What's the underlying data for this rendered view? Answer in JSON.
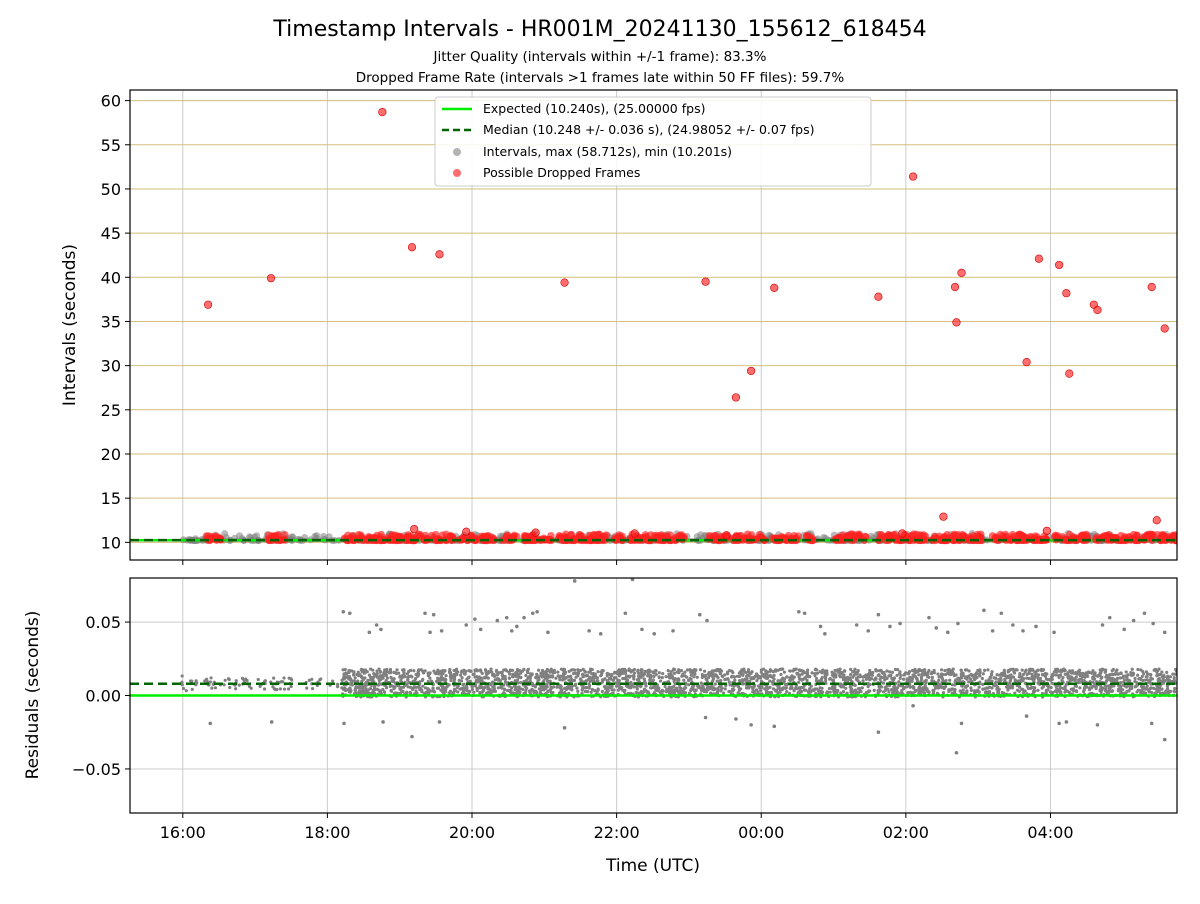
{
  "title": "Timestamp Intervals - HR001M_20241130_155612_618454",
  "subtitles": [
    "Jitter Quality (intervals within +/-1 frame): 83.3%",
    "Dropped Frame Rate (intervals >1 frames late within 50 FF files): 59.7%"
  ],
  "legend_entries": [
    "Expected (10.240s), (25.00000 fps)",
    "Median (10.248 +/- 0.036 s), (24.98052 +/- 0.07 fps)",
    "Intervals, max (58.712s), min (10.201s)",
    "Possible Dropped Frames"
  ],
  "colors": {
    "expected": "#00ee00",
    "median": "#006400",
    "intervals": "#808080",
    "dropped": "#ff2020",
    "hgrid_top": "#d4bf7a",
    "grid": "#cccccc"
  },
  "chart_data": [
    {
      "type": "scatter",
      "panel": "intervals",
      "ylabel": "Intervals (seconds)",
      "ylim": [
        8,
        61.2
      ],
      "yticks": [
        10,
        15,
        20,
        25,
        30,
        35,
        40,
        45,
        50,
        55,
        60
      ],
      "ytick_labels": [
        "10",
        "15",
        "20",
        "25",
        "30",
        "35",
        "40",
        "45",
        "50",
        "55",
        "60"
      ],
      "xlim": [
        15.27,
        29.75
      ],
      "x_unit": "hours (UTC), >24 wraps past midnight",
      "grid": "horizontal and vertical",
      "legend_position": "top-center",
      "expected_value": 10.24,
      "median_value": 10.248,
      "dropped_frames": [
        {
          "x": 16.35,
          "y": 36.9
        },
        {
          "x": 17.22,
          "y": 39.9
        },
        {
          "x": 18.76,
          "y": 58.7
        },
        {
          "x": 19.17,
          "y": 43.4
        },
        {
          "x": 19.55,
          "y": 42.6
        },
        {
          "x": 21.28,
          "y": 39.4
        },
        {
          "x": 23.23,
          "y": 39.5
        },
        {
          "x": 23.65,
          "y": 26.4
        },
        {
          "x": 23.86,
          "y": 29.4
        },
        {
          "x": 24.18,
          "y": 38.8
        },
        {
          "x": 25.62,
          "y": 37.8
        },
        {
          "x": 26.1,
          "y": 51.4
        },
        {
          "x": 26.52,
          "y": 12.9
        },
        {
          "x": 26.68,
          "y": 38.9
        },
        {
          "x": 26.7,
          "y": 34.9
        },
        {
          "x": 26.77,
          "y": 40.5
        },
        {
          "x": 27.67,
          "y": 30.4
        },
        {
          "x": 27.84,
          "y": 42.1
        },
        {
          "x": 28.12,
          "y": 41.4
        },
        {
          "x": 28.22,
          "y": 38.2
        },
        {
          "x": 28.26,
          "y": 29.1
        },
        {
          "x": 28.6,
          "y": 36.9
        },
        {
          "x": 28.65,
          "y": 36.3
        },
        {
          "x": 29.4,
          "y": 38.9
        },
        {
          "x": 29.47,
          "y": 12.5
        },
        {
          "x": 29.58,
          "y": 34.2
        },
        {
          "x": 19.2,
          "y": 11.5
        },
        {
          "x": 19.92,
          "y": 11.2
        },
        {
          "x": 20.88,
          "y": 11.1
        },
        {
          "x": 22.25,
          "y": 11.0
        },
        {
          "x": 23.52,
          "y": 10.8
        },
        {
          "x": 25.95,
          "y": 11.0
        },
        {
          "x": 27.95,
          "y": 11.3
        }
      ],
      "dropped_bands": [
        [
          16.32,
          16.54
        ],
        [
          17.18,
          17.42
        ],
        [
          18.22,
          19.05
        ],
        [
          19.08,
          19.75
        ],
        [
          19.82,
          20.3
        ],
        [
          20.42,
          20.62
        ],
        [
          20.68,
          21.1
        ],
        [
          21.18,
          21.88
        ],
        [
          21.95,
          22.08
        ],
        [
          22.18,
          22.95
        ],
        [
          23.28,
          23.55
        ],
        [
          23.62,
          24.05
        ],
        [
          24.15,
          24.52
        ],
        [
          24.62,
          24.72
        ],
        [
          25.02,
          25.45
        ],
        [
          25.62,
          25.68
        ],
        [
          25.72,
          26.3
        ],
        [
          26.36,
          26.58
        ],
        [
          26.62,
          27.05
        ],
        [
          27.18,
          27.95
        ],
        [
          28.05,
          28.52
        ],
        [
          28.62,
          29.22
        ],
        [
          29.28,
          29.75
        ]
      ]
    },
    {
      "type": "scatter",
      "panel": "residuals",
      "xlabel": "Time (UTC)",
      "ylabel": "Residuals (seconds)",
      "ylim": [
        -0.08,
        0.08
      ],
      "yticks": [
        -0.05,
        0,
        0.05
      ],
      "ytick_labels": [
        "−0.05",
        "0.00",
        "0.05"
      ],
      "xlim": [
        15.27,
        29.75
      ],
      "xticks": [
        16,
        18,
        20,
        22,
        24,
        26,
        28
      ],
      "xtick_labels": [
        "16:00",
        "18:00",
        "20:00",
        "22:00",
        "00:00",
        "02:00",
        "04:00"
      ],
      "grid": "horizontal and vertical",
      "expected_residual": 0,
      "median_residual": 0.008,
      "dense_range": [
        18.2,
        29.75
      ],
      "sparse_range": [
        15.98,
        18.2
      ],
      "outliers": [
        {
          "x": 16.38,
          "y": -0.019
        },
        {
          "x": 17.23,
          "y": -0.018
        },
        {
          "x": 18.23,
          "y": -0.019
        },
        {
          "x": 18.77,
          "y": -0.018
        },
        {
          "x": 19.17,
          "y": -0.028
        },
        {
          "x": 19.55,
          "y": -0.018
        },
        {
          "x": 21.28,
          "y": -0.022
        },
        {
          "x": 23.23,
          "y": -0.015
        },
        {
          "x": 23.65,
          "y": -0.016
        },
        {
          "x": 23.86,
          "y": -0.02
        },
        {
          "x": 24.18,
          "y": -0.021
        },
        {
          "x": 25.62,
          "y": -0.025
        },
        {
          "x": 26.1,
          "y": -0.007
        },
        {
          "x": 26.7,
          "y": -0.039
        },
        {
          "x": 26.77,
          "y": -0.019
        },
        {
          "x": 27.67,
          "y": -0.014
        },
        {
          "x": 28.12,
          "y": -0.019
        },
        {
          "x": 28.22,
          "y": -0.018
        },
        {
          "x": 28.65,
          "y": -0.02
        },
        {
          "x": 29.4,
          "y": -0.019
        },
        {
          "x": 29.58,
          "y": -0.03
        },
        {
          "x": 18.22,
          "y": 0.057
        },
        {
          "x": 18.31,
          "y": 0.056
        },
        {
          "x": 18.58,
          "y": 0.043
        },
        {
          "x": 18.68,
          "y": 0.048
        },
        {
          "x": 18.74,
          "y": 0.045
        },
        {
          "x": 19.35,
          "y": 0.056
        },
        {
          "x": 19.47,
          "y": 0.055
        },
        {
          "x": 19.42,
          "y": 0.043
        },
        {
          "x": 19.58,
          "y": 0.044
        },
        {
          "x": 19.92,
          "y": 0.048
        },
        {
          "x": 20.04,
          "y": 0.052
        },
        {
          "x": 20.12,
          "y": 0.045
        },
        {
          "x": 20.35,
          "y": 0.051
        },
        {
          "x": 20.48,
          "y": 0.053
        },
        {
          "x": 20.55,
          "y": 0.044
        },
        {
          "x": 20.62,
          "y": 0.047
        },
        {
          "x": 20.72,
          "y": 0.053
        },
        {
          "x": 20.84,
          "y": 0.056
        },
        {
          "x": 20.9,
          "y": 0.057
        },
        {
          "x": 21.05,
          "y": 0.043
        },
        {
          "x": 21.62,
          "y": 0.044
        },
        {
          "x": 21.78,
          "y": 0.042
        },
        {
          "x": 22.12,
          "y": 0.056
        },
        {
          "x": 22.35,
          "y": 0.045
        },
        {
          "x": 22.52,
          "y": 0.042
        },
        {
          "x": 22.78,
          "y": 0.044
        },
        {
          "x": 23.15,
          "y": 0.055
        },
        {
          "x": 23.25,
          "y": 0.051
        },
        {
          "x": 24.52,
          "y": 0.057
        },
        {
          "x": 24.6,
          "y": 0.056
        },
        {
          "x": 24.82,
          "y": 0.047
        },
        {
          "x": 24.88,
          "y": 0.042
        },
        {
          "x": 25.32,
          "y": 0.048
        },
        {
          "x": 25.48,
          "y": 0.044
        },
        {
          "x": 25.62,
          "y": 0.055
        },
        {
          "x": 25.78,
          "y": 0.047
        },
        {
          "x": 25.92,
          "y": 0.049
        },
        {
          "x": 26.32,
          "y": 0.053
        },
        {
          "x": 26.42,
          "y": 0.046
        },
        {
          "x": 26.58,
          "y": 0.043
        },
        {
          "x": 26.72,
          "y": 0.049
        },
        {
          "x": 27.08,
          "y": 0.058
        },
        {
          "x": 27.2,
          "y": 0.044
        },
        {
          "x": 27.32,
          "y": 0.056
        },
        {
          "x": 27.48,
          "y": 0.048
        },
        {
          "x": 27.62,
          "y": 0.044
        },
        {
          "x": 27.8,
          "y": 0.047
        },
        {
          "x": 28.05,
          "y": 0.043
        },
        {
          "x": 28.72,
          "y": 0.048
        },
        {
          "x": 28.82,
          "y": 0.053
        },
        {
          "x": 29.02,
          "y": 0.045
        },
        {
          "x": 29.15,
          "y": 0.051
        },
        {
          "x": 29.3,
          "y": 0.056
        },
        {
          "x": 29.42,
          "y": 0.049
        },
        {
          "x": 29.58,
          "y": 0.043
        },
        {
          "x": 21.42,
          "y": 0.078
        },
        {
          "x": 22.22,
          "y": 0.079
        }
      ]
    }
  ]
}
